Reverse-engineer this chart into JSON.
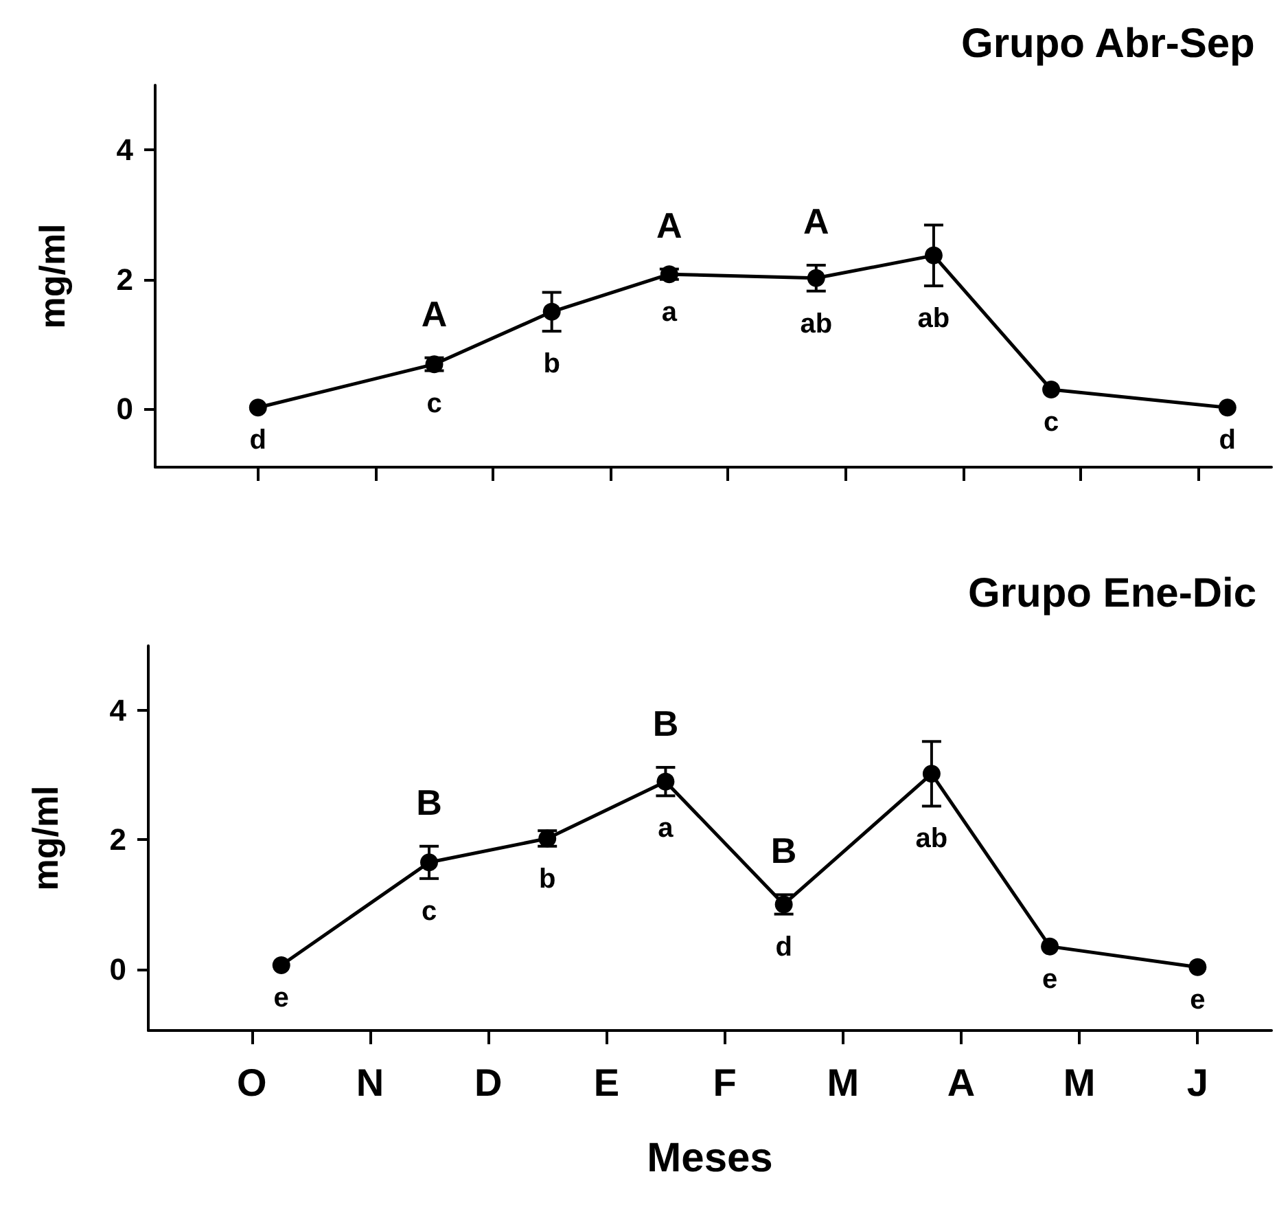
{
  "chart_data": [
    {
      "type": "line",
      "title": "Grupo Abr-Sep",
      "ylabel": "mg/ml",
      "color": "#000000",
      "marker": "circle",
      "tick_labels": "y",
      "categories": [
        null,
        null,
        null,
        null,
        null,
        null,
        null,
        null,
        null,
        null,
        null,
        null,
        null,
        null,
        null,
        null,
        null,
        null,
        null,
        null,
        null,
        null,
        null,
        null,
        null,
        null,
        null,
        null,
        null,
        null,
        null,
        null,
        null,
        null,
        null,
        null,
        null,
        null
      ],
      "values": [
        null,
        null,
        null,
        0.02,
        null,
        null,
        null,
        null,
        null,
        0.69,
        null,
        null,
        null,
        1.5,
        null,
        null,
        null,
        2.08,
        null,
        null,
        null,
        null,
        2.02,
        null,
        null,
        null,
        2.37,
        null,
        null,
        null,
        0.3,
        null,
        null,
        null,
        null,
        null,
        0.02,
        null
      ],
      "errors": [
        null,
        null,
        null,
        null,
        null,
        null,
        null,
        null,
        null,
        0.1,
        null,
        null,
        null,
        0.3,
        null,
        null,
        null,
        0.08,
        null,
        null,
        null,
        null,
        0.2,
        null,
        null,
        null,
        0.47,
        null,
        null,
        null,
        null,
        null,
        null,
        null,
        null,
        null,
        null,
        null
      ],
      "value_labels": [
        null,
        null,
        null,
        "d",
        null,
        null,
        null,
        null,
        null,
        "c",
        null,
        null,
        null,
        "b",
        null,
        null,
        null,
        "a",
        null,
        null,
        null,
        null,
        "ab",
        null,
        null,
        null,
        "ab",
        null,
        null,
        null,
        "c",
        null,
        null,
        null,
        null,
        null,
        "d",
        null
      ],
      "ylim": [
        -0.9,
        5
      ],
      "yticks": [
        0,
        2,
        4
      ],
      "annotations": [
        {
          "text": "A",
          "y": 0.79
        },
        {
          "text": "A",
          "y": 2.16
        },
        {
          "text": "A",
          "y": 2.22
        }
      ]
    },
    {
      "type": "line",
      "title": "Grupo Ene-Dic",
      "ylabel": "mg/ml",
      "xlabel": "Meses",
      "color": "#000000",
      "marker": "circle",
      "categories": [
        null,
        null,
        null,
        "O",
        null,
        null,
        null,
        "N",
        null,
        null,
        null,
        "D",
        null,
        null,
        null,
        "E",
        null,
        null,
        null,
        "F",
        null,
        null,
        null,
        "M",
        null,
        null,
        null,
        "A",
        null,
        null,
        null,
        "M",
        null,
        null,
        null,
        "J",
        null,
        null
      ],
      "values": [
        null,
        null,
        null,
        null,
        0.06,
        null,
        null,
        null,
        null,
        1.65,
        null,
        null,
        null,
        2.02,
        null,
        null,
        null,
        2.9,
        null,
        null,
        null,
        1.0,
        null,
        null,
        null,
        null,
        3.02,
        null,
        null,
        null,
        0.35,
        null,
        null,
        null,
        null,
        0.03,
        null,
        null
      ],
      "errors": [
        null,
        null,
        null,
        null,
        null,
        null,
        null,
        null,
        null,
        0.25,
        null,
        null,
        null,
        0.12,
        null,
        null,
        null,
        0.22,
        null,
        null,
        null,
        0.15,
        null,
        null,
        null,
        null,
        0.5,
        null,
        null,
        null,
        null,
        null,
        null,
        null,
        null,
        null,
        null,
        null
      ],
      "value_labels": [
        null,
        null,
        null,
        null,
        "e",
        null,
        null,
        null,
        null,
        "c",
        null,
        null,
        null,
        "b",
        null,
        null,
        null,
        "a",
        null,
        null,
        null,
        "d",
        null,
        null,
        null,
        null,
        "ab",
        null,
        null,
        null,
        "e",
        null,
        null,
        null,
        null,
        "e",
        null,
        null
      ],
      "ylim": [
        -0.95,
        5
      ],
      "yticks": [
        0,
        2,
        4
      ],
      "annotations": [
        {
          "text": "B",
          "y": 1.9
        },
        {
          "text": "B",
          "y": 3.12
        },
        {
          "text": "B",
          "y": 1.15
        }
      ]
    }
  ]
}
